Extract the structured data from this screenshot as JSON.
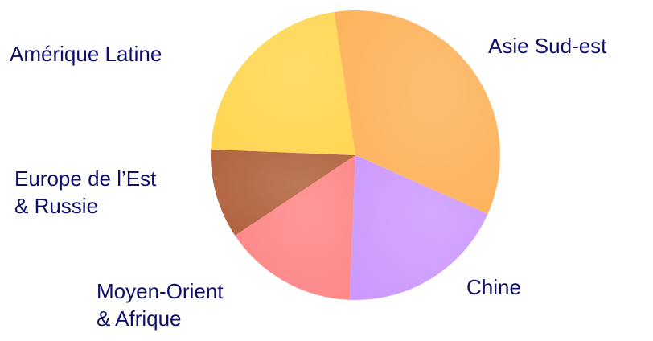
{
  "chart_data": {
    "type": "pie",
    "categories": [
      "Asie Sud-est",
      "Chine",
      "Moyen-Orient\n& Afrique",
      "Europe de l’Est\n& Russie",
      "Amérique Latine"
    ],
    "values": [
      34,
      19,
      15,
      10,
      22
    ],
    "colors": [
      "#fdb25a",
      "#cc99ff",
      "#ff8585",
      "#b0603c",
      "#ffd650"
    ]
  }
}
